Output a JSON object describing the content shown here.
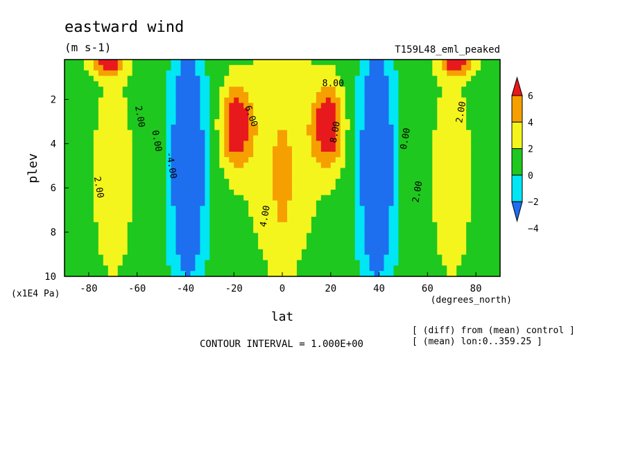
{
  "chart_data": {
    "type": "heatmap",
    "title": "eastward wind",
    "units": "(m s-1)",
    "experiment": "T159L48_eml_peaked",
    "xlabel": "lat",
    "x_units": "(degrees_north)",
    "ylabel": "plev",
    "y_units": "(x1E4 Pa)",
    "x_ticks": [
      "-80",
      "-60",
      "-40",
      "-20",
      "0",
      "20",
      "40",
      "60",
      "80"
    ],
    "x_tick_values": [
      -80,
      -60,
      -40,
      -20,
      0,
      20,
      40,
      60,
      80
    ],
    "y_ticks": [
      "2",
      "4",
      "6",
      "8",
      "10"
    ],
    "y_tick_values": [
      2,
      4,
      6,
      8,
      10
    ],
    "xlim": [
      -90,
      90
    ],
    "ylim": [
      0.2,
      10
    ],
    "y_inverted": true,
    "contour_interval_text": "CONTOUR INTERVAL = 1.000E+00",
    "note_lines": [
      "[ (diff) from (mean) control ]",
      "[ (mean) lon:0..359.25 ]"
    ],
    "colorbar": {
      "labels": [
        "6",
        "4",
        "2",
        "0",
        "−2",
        "−4"
      ],
      "label_values": [
        6,
        4,
        2,
        0,
        -2,
        -4
      ],
      "bands": [
        {
          "min": 6,
          "max": 99,
          "color": "#e8191c"
        },
        {
          "min": 4,
          "max": 6,
          "color": "#f5a000"
        },
        {
          "min": 2,
          "max": 4,
          "color": "#f5f51e"
        },
        {
          "min": 0,
          "max": 2,
          "color": "#1ec81e"
        },
        {
          "min": -2,
          "max": 0,
          "color": "#00e6f5"
        },
        {
          "min": -99,
          "max": -2,
          "color": "#1e6ef0"
        }
      ]
    },
    "contour_labels": [
      {
        "text": "2.00",
        "lat": -60,
        "plev": 2.8,
        "rot": 80
      },
      {
        "text": "2.00",
        "lat": -77,
        "plev": 6.0,
        "rot": 80
      },
      {
        "text": "0.00",
        "lat": -53,
        "plev": 3.9,
        "rot": 80
      },
      {
        "text": "-4.00",
        "lat": -47,
        "plev": 5.0,
        "rot": 80
      },
      {
        "text": "6.00",
        "lat": -14,
        "plev": 2.8,
        "rot": 70
      },
      {
        "text": "4.00",
        "lat": -6,
        "plev": 7.3,
        "rot": -80
      },
      {
        "text": "8.00",
        "lat": 21,
        "plev": 1.4,
        "rot": 0
      },
      {
        "text": "8.00",
        "lat": 23,
        "plev": 3.5,
        "rot": -80
      },
      {
        "text": "0.00",
        "lat": 52,
        "plev": 3.8,
        "rot": -80
      },
      {
        "text": "2.00",
        "lat": 57,
        "plev": 6.2,
        "rot": -80
      },
      {
        "text": "2.00",
        "lat": 75,
        "plev": 2.6,
        "rot": -80
      }
    ],
    "field_model": {
      "description": "Approximate zonal-mean eastward wind difference (m s-1), estimated from the filled contours.",
      "background": 1,
      "features": [
        {
          "lat": -19,
          "plev": 3.2,
          "amp": 7,
          "wlat": 6,
          "wp": 1.8
        },
        {
          "lat": 19,
          "plev": 3.2,
          "amp": 7,
          "wlat": 6,
          "wp": 1.8
        },
        {
          "lat": 0,
          "plev": 4.0,
          "amp": 3,
          "wlat": 16,
          "wp": 4.5
        },
        {
          "lat": 0,
          "plev": 8.0,
          "amp": 1.5,
          "wlat": 7,
          "wp": 2.5
        },
        {
          "lat": -39,
          "plev": 5.0,
          "amp": -7,
          "wlat": 7,
          "wp": 5.5
        },
        {
          "lat": 39,
          "plev": 5.0,
          "amp": -7,
          "wlat": 7,
          "wp": 5.5
        },
        {
          "lat": -70,
          "plev": 5.5,
          "amp": 2.2,
          "wlat": 9,
          "wp": 5.0
        },
        {
          "lat": 70,
          "plev": 5.5,
          "amp": 2.2,
          "wlat": 9,
          "wp": 5.0
        },
        {
          "lat": -72,
          "plev": 0.4,
          "amp": 5.5,
          "wlat": 7,
          "wp": 0.6
        },
        {
          "lat": 72,
          "plev": 0.4,
          "amp": 5.5,
          "wlat": 7,
          "wp": 0.6
        }
      ]
    }
  }
}
